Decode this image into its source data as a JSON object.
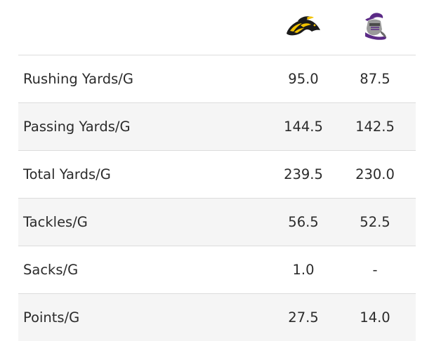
{
  "teams": [
    {
      "logo_icon": "mustang-logo-icon",
      "primary_color": "#1b1b1b",
      "accent_color": "#f3c300"
    },
    {
      "logo_icon": "knight-logo-icon",
      "primary_color": "#5b2a86",
      "accent_color": "#9a9a9a"
    }
  ],
  "rows": [
    {
      "label": "Rushing Yards/G",
      "team_a": "95.0",
      "team_b": "87.5"
    },
    {
      "label": "Passing Yards/G",
      "team_a": "144.5",
      "team_b": "142.5"
    },
    {
      "label": "Total Yards/G",
      "team_a": "239.5",
      "team_b": "230.0"
    },
    {
      "label": "Tackles/G",
      "team_a": "56.5",
      "team_b": "52.5"
    },
    {
      "label": "Sacks/G",
      "team_a": "1.0",
      "team_b": "-"
    },
    {
      "label": "Points/G",
      "team_a": "27.5",
      "team_b": "14.0"
    }
  ]
}
